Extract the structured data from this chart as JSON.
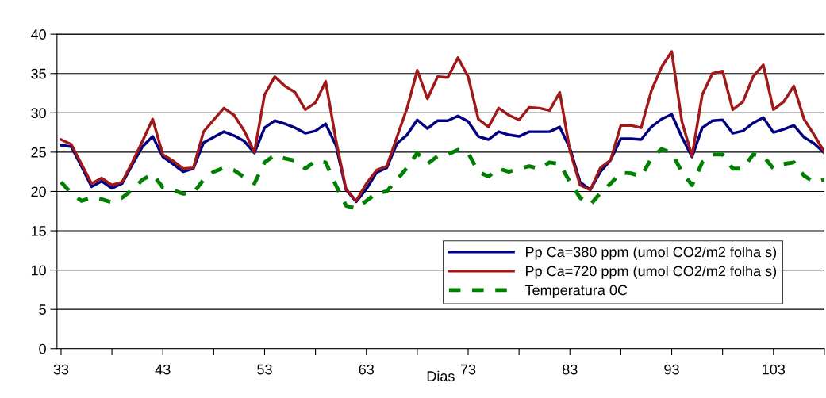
{
  "chart_data": {
    "type": "line",
    "xlabel": "Dias",
    "x": [
      33,
      34,
      35,
      36,
      37,
      38,
      39,
      40,
      41,
      42,
      43,
      44,
      45,
      46,
      47,
      48,
      49,
      50,
      51,
      52,
      53,
      54,
      55,
      56,
      57,
      58,
      59,
      60,
      61,
      62,
      63,
      64,
      65,
      66,
      67,
      68,
      69,
      70,
      71,
      72,
      73,
      74,
      75,
      76,
      77,
      78,
      79,
      80,
      81,
      82,
      83,
      84,
      85,
      86,
      87,
      88,
      89,
      90,
      91,
      92,
      93,
      94,
      95,
      96,
      97,
      98,
      99,
      100,
      101,
      102,
      103,
      104,
      105,
      106,
      107,
      108
    ],
    "series": [
      {
        "name": "Pp Ca=380 ppm (umol CO2/m2 folha s)",
        "color": "#000080",
        "line_style": "solid",
        "values": [
          25.9,
          25.7,
          23.2,
          20.6,
          21.3,
          20.4,
          21.0,
          23.4,
          25.7,
          27.0,
          24.4,
          23.5,
          22.5,
          22.9,
          26.2,
          26.9,
          27.6,
          27.1,
          26.4,
          24.9,
          28.1,
          29.0,
          28.6,
          28.1,
          27.4,
          27.7,
          28.6,
          25.9,
          20.2,
          18.7,
          20.3,
          22.4,
          23.0,
          26.1,
          27.2,
          29.1,
          28.0,
          29.0,
          29.0,
          29.6,
          28.9,
          27.0,
          26.6,
          27.6,
          27.2,
          27.0,
          27.6,
          27.6,
          27.6,
          28.2,
          25.5,
          21.2,
          20.2,
          22.5,
          24.0,
          26.7,
          26.7,
          26.6,
          28.2,
          29.2,
          29.8,
          26.9,
          24.4,
          28.1,
          29.0,
          29.1,
          27.4,
          27.7,
          28.7,
          29.4,
          27.5,
          27.9,
          28.4,
          26.9,
          26.1,
          24.9
        ]
      },
      {
        "name": "Pp Ca=720 ppm (umol CO2/m2 folha s)",
        "color": "#a01818",
        "line_style": "solid",
        "values": [
          26.6,
          26.0,
          23.5,
          21.0,
          21.7,
          20.8,
          21.2,
          23.7,
          26.4,
          29.2,
          24.7,
          23.9,
          22.9,
          23.0,
          27.6,
          29.1,
          30.6,
          29.7,
          27.7,
          25.0,
          32.3,
          34.6,
          33.4,
          32.6,
          30.4,
          31.3,
          34.0,
          26.6,
          20.3,
          18.8,
          21.0,
          22.7,
          23.2,
          26.9,
          30.6,
          35.4,
          31.8,
          34.6,
          34.5,
          37.0,
          34.6,
          29.2,
          28.2,
          30.6,
          29.7,
          29.1,
          30.7,
          30.6,
          30.3,
          32.6,
          25.2,
          20.8,
          20.2,
          23.0,
          24.0,
          28.4,
          28.4,
          28.1,
          32.8,
          35.8,
          37.8,
          28.9,
          24.5,
          32.3,
          35.0,
          35.3,
          30.4,
          31.4,
          34.6,
          36.1,
          30.4,
          31.4,
          33.4,
          29.2,
          27.2,
          25.0
        ]
      },
      {
        "name": "Temperatura 0C",
        "color": "#008000",
        "line_style": "dashed",
        "values": [
          21.2,
          19.8,
          18.8,
          19.2,
          19.0,
          18.6,
          19.2,
          20.2,
          21.5,
          22.2,
          20.5,
          20.2,
          19.7,
          19.8,
          21.5,
          22.5,
          23.0,
          22.7,
          21.8,
          21.0,
          23.7,
          24.6,
          24.2,
          23.9,
          22.9,
          23.9,
          23.7,
          20.8,
          18.2,
          17.8,
          18.8,
          19.8,
          20.0,
          21.5,
          23.0,
          24.9,
          23.5,
          24.5,
          24.7,
          25.3,
          24.9,
          22.5,
          21.9,
          22.9,
          22.5,
          22.9,
          23.2,
          22.9,
          23.7,
          23.5,
          21.2,
          19.2,
          18.3,
          19.8,
          21.0,
          22.4,
          22.3,
          21.9,
          24.2,
          25.4,
          24.9,
          22.5,
          20.8,
          23.7,
          24.7,
          24.7,
          22.9,
          22.9,
          24.7,
          24.5,
          22.9,
          23.5,
          23.7,
          22.0,
          21.2,
          21.5
        ]
      }
    ],
    "xlim": [
      32.6,
      108
    ],
    "xticks": [
      33,
      {
        "value": 38,
        "label": null
      },
      43,
      {
        "value": 48,
        "label": null
      },
      53,
      {
        "value": 58,
        "label": null
      },
      63,
      {
        "value": 68,
        "label": null
      },
      73,
      {
        "value": 78,
        "label": null
      },
      83,
      {
        "value": 88,
        "label": null
      },
      93,
      {
        "value": 98,
        "label": null
      },
      103,
      {
        "value": 108,
        "label": null
      }
    ],
    "ylim": [
      0,
      40
    ],
    "yticks": [
      0,
      5,
      10,
      15,
      20,
      25,
      30,
      35,
      40
    ],
    "grid": "y",
    "legend": "bottom right",
    "marker": "none"
  }
}
